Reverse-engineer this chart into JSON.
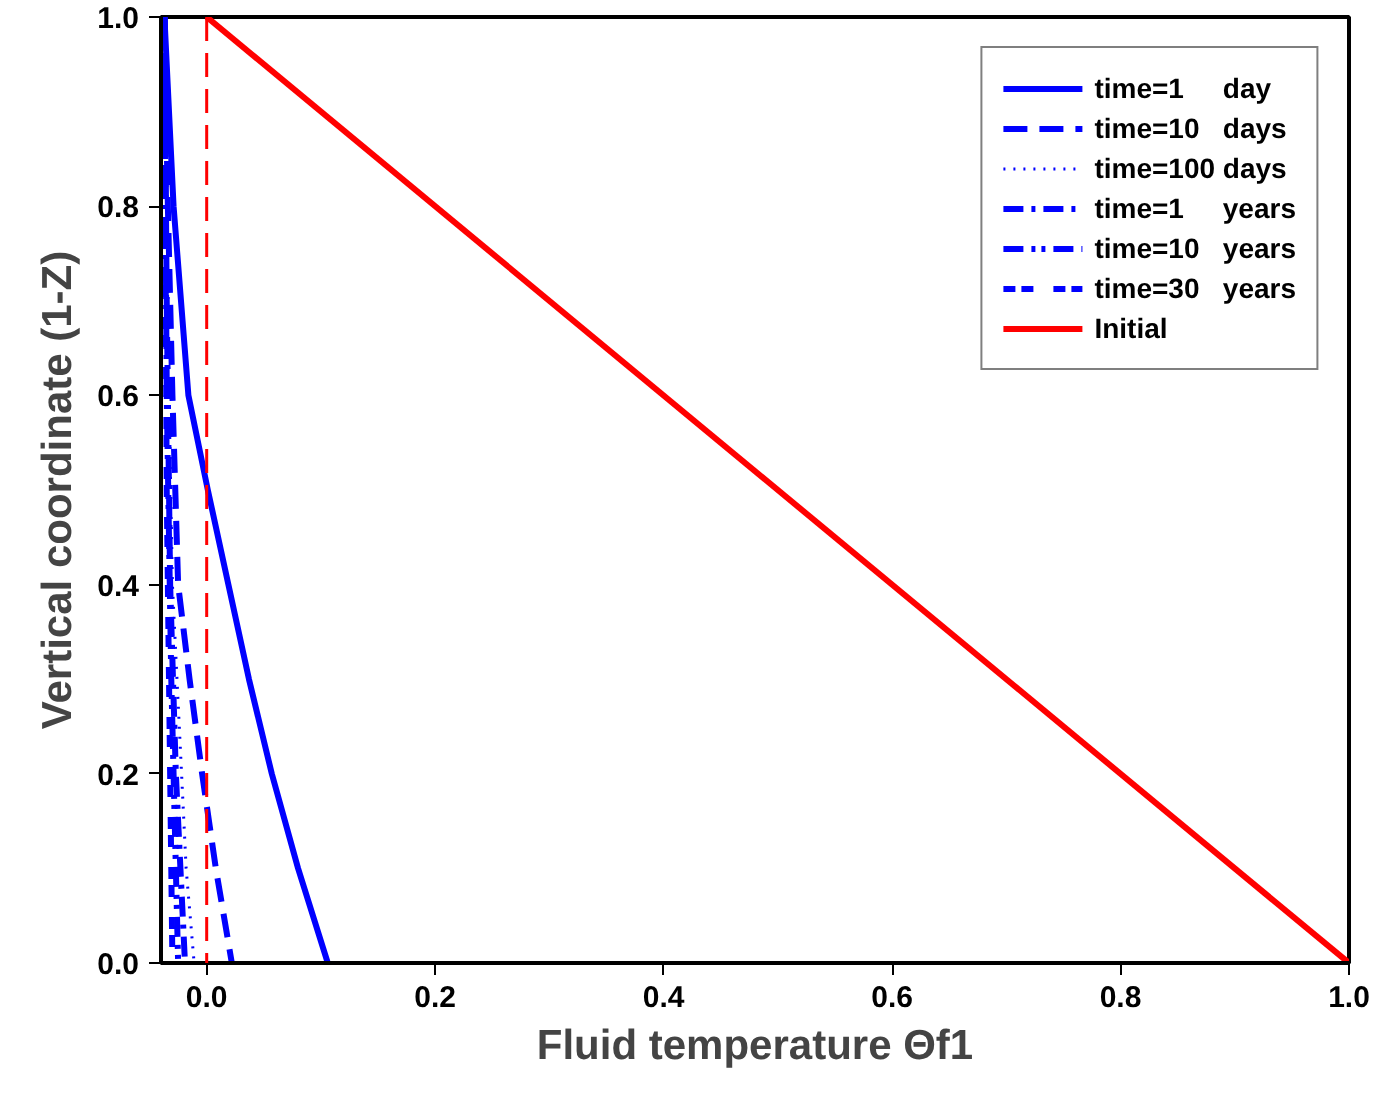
{
  "chart_data": {
    "type": "line",
    "xlabel": "Fluid temperature Θf1",
    "ylabel": "Vertical coordinate (1-Z)",
    "xlim": [
      -0.04,
      1.0
    ],
    "ylim": [
      0.0,
      1.0
    ],
    "xticks": [
      {
        "value": 0,
        "label": "0.0"
      },
      0.2,
      0.4,
      0.6,
      0.8,
      {
        "value": 1,
        "label": "1.0"
      }
    ],
    "yticks": [
      {
        "value": 0,
        "label": "0.0"
      },
      0.2,
      0.4,
      0.6,
      0.8,
      {
        "value": 1,
        "label": "1.0"
      }
    ],
    "grid": false,
    "legend": "top right",
    "marker": "none",
    "series": [
      {
        "name": "time=1     day",
        "color": "#0000ff",
        "line_style": "solid",
        "x": [
          -0.037,
          -0.029,
          -0.016,
          0.001,
          0.019,
          0.037,
          0.057,
          0.08,
          0.106
        ],
        "values": [
          1.0,
          0.8,
          0.6,
          0.5,
          0.4,
          0.3,
          0.2,
          0.1,
          0.0
        ]
      },
      {
        "name": "time=10   days",
        "color": "#0000ff",
        "line_style": "dashed",
        "x": [
          -0.037,
          -0.034,
          -0.03,
          -0.025,
          -0.015,
          -0.004,
          0.008,
          0.022
        ],
        "values": [
          1.0,
          0.8,
          0.6,
          0.4,
          0.3,
          0.2,
          0.1,
          0.0
        ]
      },
      {
        "name": "time=100 days",
        "color": "#0000ff",
        "line_style": "dotted",
        "x": [
          -0.037,
          -0.035,
          -0.033,
          -0.03,
          -0.024,
          -0.018,
          -0.011
        ],
        "values": [
          1.0,
          0.8,
          0.6,
          0.4,
          0.25,
          0.1,
          0.0
        ]
      },
      {
        "name": "time=1     years",
        "color": "#0000ff",
        "line_style": "dashdot",
        "x": [
          -0.037,
          -0.035,
          -0.032,
          -0.027,
          -0.019
        ],
        "values": [
          1.0,
          0.7,
          0.4,
          0.2,
          0.0
        ]
      },
      {
        "name": "time=10   years",
        "color": "#0000ff",
        "line_style": "dashdotdot",
        "x": [
          -0.037,
          -0.035,
          -0.031,
          -0.025
        ],
        "values": [
          1.0,
          0.6,
          0.3,
          0.0
        ]
      },
      {
        "name": "time=30   years",
        "color": "#0000ff",
        "line_style": "dashed_short",
        "x": [
          -0.037,
          -0.035,
          -0.03
        ],
        "values": [
          1.0,
          0.5,
          0.0
        ]
      },
      {
        "name": "Initial",
        "color": "#ff0000",
        "line_style": "solid",
        "x": [
          0.0,
          1.0
        ],
        "values": [
          1.0,
          0.0
        ]
      }
    ],
    "ref_lines": [
      {
        "axis": "x",
        "value": 0.0,
        "label": null,
        "color": "#ff0000",
        "line_style": "dashed"
      }
    ]
  }
}
